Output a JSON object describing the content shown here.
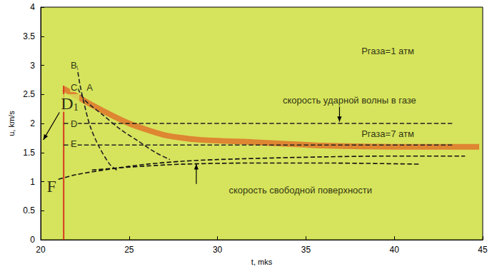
{
  "chart_data": {
    "type": "line",
    "xlabel": "t, mks",
    "ylabel": "u, km/s",
    "xlim": [
      20,
      45
    ],
    "xticks": [
      20,
      25,
      30,
      35,
      40,
      45
    ],
    "ylim": [
      0,
      4
    ],
    "yticks": [
      0,
      0.5,
      1,
      1.5,
      2,
      2.5,
      3,
      3.5,
      4
    ],
    "grid": false,
    "series": [
      {
        "color": "#e2541c",
        "line_style": "thick",
        "x": [
          21.3,
          23,
          25,
          27,
          29,
          32,
          36,
          40,
          44.8
        ],
        "values": [
          2.6,
          2.3,
          2.0,
          1.8,
          1.72,
          1.68,
          1.62,
          1.6,
          1.6
        ]
      },
      {
        "color": "#d9381e",
        "line_style": "solid",
        "x": [
          21.3,
          21.3
        ],
        "values": [
          0,
          2.65
        ]
      },
      {
        "color": "#222222",
        "line_style": "dashed",
        "x": [
          22.05,
          22.2,
          22.45,
          22.8,
          23.3,
          23.9,
          24.3
        ],
        "values": [
          3.0,
          2.7,
          2.35,
          1.95,
          1.6,
          1.3,
          1.2
        ]
      },
      {
        "color": "#222222",
        "line_style": "dashed",
        "x": [
          22.1,
          22.5,
          23.5,
          24.5,
          25.5,
          26.5,
          27.3
        ],
        "values": [
          2.6,
          2.4,
          2.15,
          1.9,
          1.7,
          1.5,
          1.38
        ]
      },
      {
        "color": "#222222",
        "line_style": "dashed",
        "x": [
          21.3,
          43.3
        ],
        "values": [
          2.0,
          2.0
        ]
      },
      {
        "color": "#222222",
        "line_style": "dashed",
        "x": [
          21.3,
          43.3
        ],
        "values": [
          1.63,
          1.63
        ]
      },
      {
        "color": "#111111",
        "line_style": "dashed",
        "x": [
          21.0,
          22,
          24,
          26,
          28,
          30,
          35,
          40,
          44
        ],
        "values": [
          1.04,
          1.12,
          1.22,
          1.3,
          1.35,
          1.38,
          1.42,
          1.44,
          1.44
        ]
      },
      {
        "color": "#111111",
        "line_style": "dashed",
        "x": [
          22.9,
          25,
          28,
          32,
          36,
          41.5
        ],
        "values": [
          1.2,
          1.25,
          1.3,
          1.32,
          1.32,
          1.3
        ]
      }
    ],
    "annotations": [
      {
        "text": "Ргаза=1 атм",
        "x": 38.1,
        "y": 3.24
      },
      {
        "text": "скорость ударной волны в газе",
        "x": 33.65,
        "y": 2.4,
        "arrow_to": [
          36.9,
          2.03
        ]
      },
      {
        "text": "Ргаза=7 атм",
        "x": 38.1,
        "y": 1.82
      },
      {
        "text": "скорость свободной поверхности",
        "x": 30.6,
        "y": 0.85,
        "arrow_to": [
          28.8,
          1.3
        ]
      },
      {
        "text": "B",
        "x": 21.66,
        "y": 3.0
      },
      {
        "text": "C",
        "x": 21.66,
        "y": 2.62
      },
      {
        "text": "A",
        "x": 22.55,
        "y": 2.62
      },
      {
        "text": "D",
        "x": 21.66,
        "y": 2.0
      },
      {
        "text": "E",
        "x": 21.66,
        "y": 1.65
      }
    ],
    "handwritten": [
      {
        "text": "D1",
        "x": 21.1,
        "y": 2.35,
        "arrow_to": [
          20.15,
          1.72
        ]
      },
      {
        "text": "F",
        "x": 20.3,
        "y": 0.92
      }
    ]
  }
}
